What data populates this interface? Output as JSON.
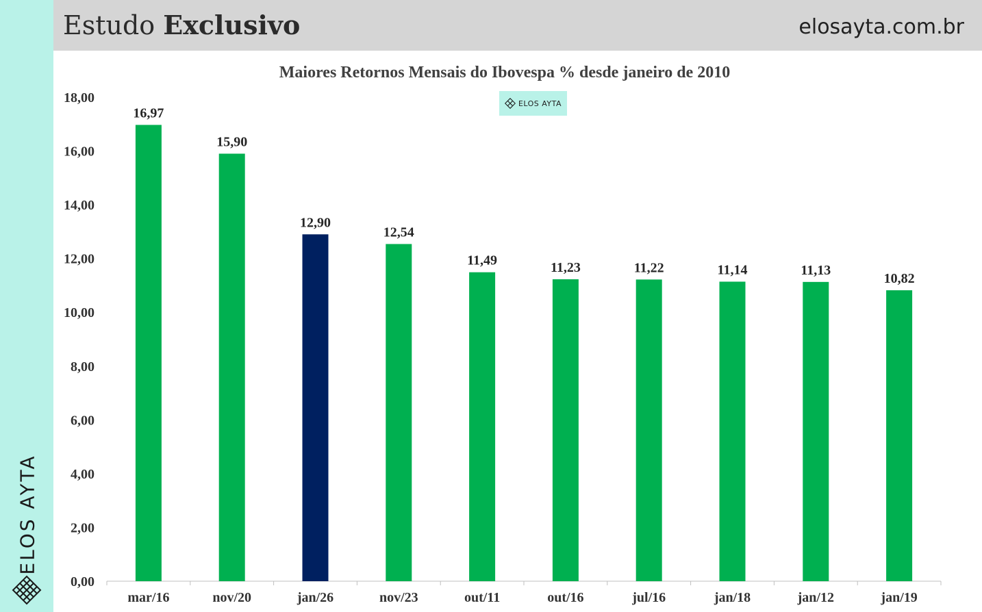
{
  "header": {
    "title_light": "Estudo",
    "title_bold": "Exclusivo",
    "site": "elosayta.com.br"
  },
  "brand": {
    "sidebar_text": "ELOS AYTA",
    "badge_text": "ELOS AYTA",
    "icon": "lattice-logo-icon",
    "sidebar_color": "#b9f2e8"
  },
  "chart_data": {
    "type": "bar",
    "title": "Maiores Retornos Mensais do Ibovespa % desde janeiro de 2010",
    "categories": [
      "mar/16",
      "nov/20",
      "jan/26",
      "nov/23",
      "out/11",
      "out/16",
      "jul/16",
      "jan/18",
      "jan/12",
      "jan/19"
    ],
    "values": [
      16.97,
      15.9,
      12.9,
      12.54,
      11.49,
      11.23,
      11.22,
      11.14,
      11.13,
      10.82
    ],
    "value_labels": [
      "16,97",
      "15,90",
      "12,90",
      "12,54",
      "11,49",
      "11,23",
      "11,22",
      "11,14",
      "11,13",
      "10,82"
    ],
    "highlight_index": 2,
    "colors": {
      "default": "#00b050",
      "highlight": "#002060"
    },
    "ylim": [
      0,
      18
    ],
    "yticks": [
      "0,00",
      "2,00",
      "4,00",
      "6,00",
      "8,00",
      "10,00",
      "12,00",
      "14,00",
      "16,00",
      "18,00"
    ],
    "grid": false,
    "xlabel": "",
    "ylabel": ""
  }
}
